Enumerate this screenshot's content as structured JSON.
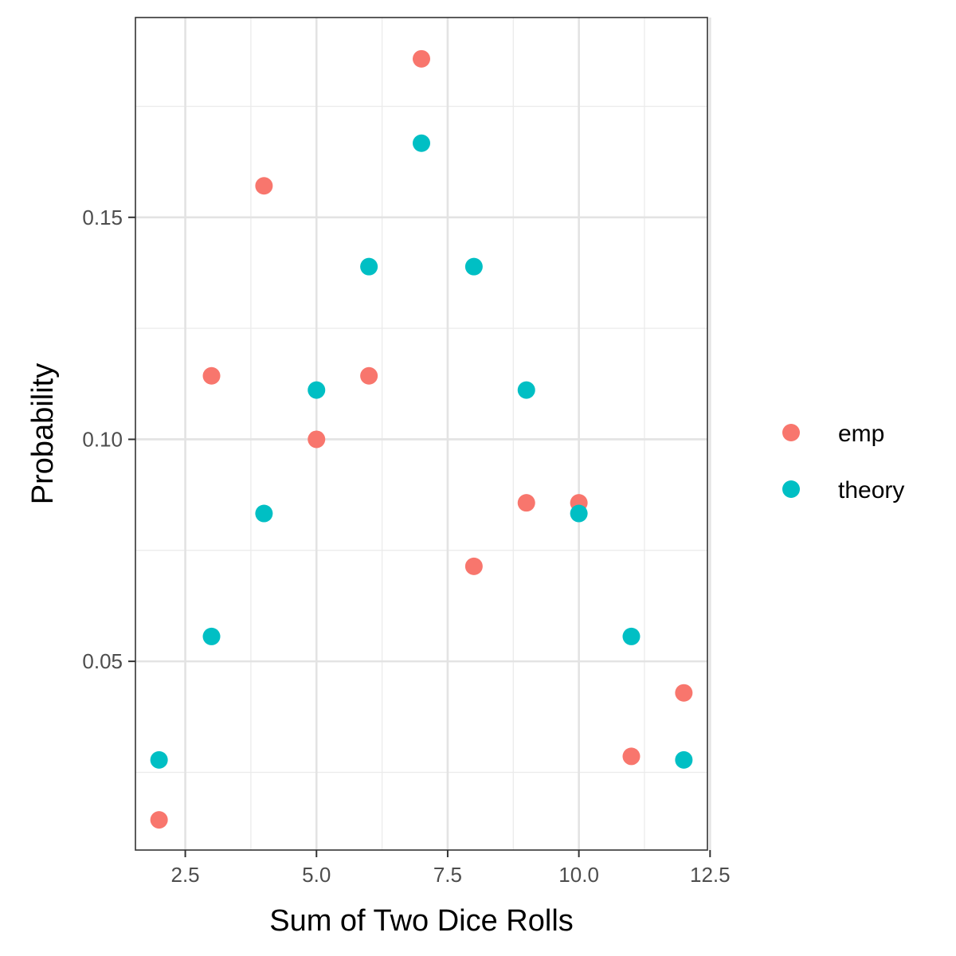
{
  "chart_data": {
    "type": "scatter",
    "title": "",
    "xlabel": "Sum of Two Dice Rolls",
    "ylabel": "Probability",
    "xlim": [
      1.55,
      12.45
    ],
    "ylim": [
      0.0075,
      0.195
    ],
    "x_ticks": [
      2.5,
      5.0,
      7.5,
      10.0,
      12.5
    ],
    "x_tick_labels": [
      "2.5",
      "5.0",
      "7.5",
      "10.0",
      "12.5"
    ],
    "x_minor_ticks": [
      3.75,
      6.25,
      8.75,
      11.25
    ],
    "y_ticks": [
      0.05,
      0.1,
      0.15
    ],
    "y_tick_labels": [
      "0.05",
      "0.10",
      "0.15"
    ],
    "y_minor_ticks": [
      0.025,
      0.075,
      0.125,
      0.175
    ],
    "grid": true,
    "legend_position": "right",
    "series": [
      {
        "name": "emp",
        "color": "#F8766D",
        "x": [
          2,
          3,
          4,
          5,
          6,
          7,
          8,
          9,
          10,
          11,
          12
        ],
        "y": [
          0.0143,
          0.1143,
          0.1571,
          0.1,
          0.1143,
          0.1857,
          0.0714,
          0.0857,
          0.0857,
          0.0286,
          0.0429
        ]
      },
      {
        "name": "theory",
        "color": "#00BFC4",
        "x": [
          2,
          3,
          4,
          5,
          6,
          7,
          8,
          9,
          10,
          11,
          12
        ],
        "y": [
          0.0278,
          0.0556,
          0.0833,
          0.1111,
          0.1389,
          0.1667,
          0.1389,
          0.1111,
          0.0833,
          0.0556,
          0.0278
        ]
      }
    ]
  }
}
